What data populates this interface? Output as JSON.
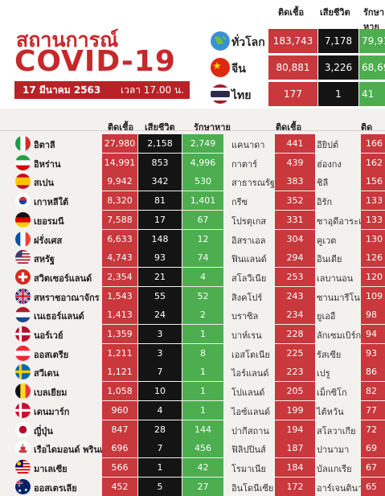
{
  "header": {
    "title_th": "สถานการณ์",
    "title_en": "COVID-19",
    "date": "17 มีนาคม 2563",
    "time": "เวลา 17.00 น."
  },
  "columns": {
    "cases": "ติดเชื้อ",
    "deaths": "เสียชีวิต",
    "recovered": "รักษาหาย"
  },
  "colors": {
    "cases": "#c8383c",
    "deaths": "#141414",
    "recovered": "#4cae4f",
    "title": "#c7282b"
  },
  "summary": [
    {
      "name": "ทั่วโลก",
      "icon": "globe-icon",
      "cases": "183,743",
      "deaths": "7,178",
      "recovered": "79,911"
    },
    {
      "name": "จีน",
      "icon": "china-flag-icon",
      "cases": "80,881",
      "deaths": "3,226",
      "recovered": "68,694"
    },
    {
      "name": "ไทย",
      "icon": "thailand-flag-icon",
      "cases": "177",
      "deaths": "1",
      "recovered": "41"
    }
  ],
  "chart_data": {
    "type": "table",
    "title": "สถานการณ์ COVID-19",
    "col1": [
      {
        "country": "อิตาลี",
        "cases": "27,980",
        "deaths": "2,158",
        "recovered": "2,749"
      },
      {
        "country": "อิหร่าน",
        "cases": "14,991",
        "deaths": "853",
        "recovered": "4,996"
      },
      {
        "country": "สเปน",
        "cases": "9,942",
        "deaths": "342",
        "recovered": "530"
      },
      {
        "country": "เกาหลีใต้",
        "cases": "8,320",
        "deaths": "81",
        "recovered": "1,401"
      },
      {
        "country": "เยอรมนี",
        "cases": "7,588",
        "deaths": "17",
        "recovered": "67"
      },
      {
        "country": "ฝรั่งเศส",
        "cases": "6,633",
        "deaths": "148",
        "recovered": "12"
      },
      {
        "country": "สหรัฐ",
        "cases": "4,743",
        "deaths": "93",
        "recovered": "74"
      },
      {
        "country": "สวิตเซอร์แลนด์",
        "cases": "2,354",
        "deaths": "21",
        "recovered": "4"
      },
      {
        "country": "สหราชอาณาจักร",
        "cases": "1,543",
        "deaths": "55",
        "recovered": "52"
      },
      {
        "country": "เนเธอร์แลนด์",
        "cases": "1,413",
        "deaths": "24",
        "recovered": "2"
      },
      {
        "country": "นอร์เวย์",
        "cases": "1,359",
        "deaths": "3",
        "recovered": "1"
      },
      {
        "country": "ออสเตรีย",
        "cases": "1,211",
        "deaths": "3",
        "recovered": "8"
      },
      {
        "country": "สวีเดน",
        "cases": "1,121",
        "deaths": "7",
        "recovered": "1"
      },
      {
        "country": "เบลเยียม",
        "cases": "1,058",
        "deaths": "10",
        "recovered": "1"
      },
      {
        "country": "เดนมาร์ก",
        "cases": "960",
        "deaths": "4",
        "recovered": "1"
      },
      {
        "country": "ญี่ปุ่น",
        "cases": "847",
        "deaths": "28",
        "recovered": "144"
      },
      {
        "country": "เรือไดมอนด์ พรินเซส",
        "cases": "696",
        "deaths": "7",
        "recovered": "456"
      },
      {
        "country": "มาเลเซีย",
        "cases": "566",
        "deaths": "1",
        "recovered": "42"
      },
      {
        "country": "ออสเตรเลีย",
        "cases": "452",
        "deaths": "5",
        "recovered": "27"
      }
    ],
    "col2": [
      {
        "country": "แคนาดา",
        "cases": "441"
      },
      {
        "country": "กาตาร์",
        "cases": "439"
      },
      {
        "country": "สาธารณรัฐเช็ก",
        "cases": "383"
      },
      {
        "country": "กรีซ",
        "cases": "352"
      },
      {
        "country": "โปรตุเกส",
        "cases": "331"
      },
      {
        "country": "อิสราเอล",
        "cases": "304"
      },
      {
        "country": "ฟินแลนด์",
        "cases": "294"
      },
      {
        "country": "สโลวีเนีย",
        "cases": "253"
      },
      {
        "country": "สิงคโปร์",
        "cases": "243"
      },
      {
        "country": "บราซิล",
        "cases": "234"
      },
      {
        "country": "บาห์เรน",
        "cases": "228"
      },
      {
        "country": "เอสโตเนีย",
        "cases": "225"
      },
      {
        "country": "ไอร์แลนด์",
        "cases": "223"
      },
      {
        "country": "โปแลนด์",
        "cases": "205"
      },
      {
        "country": "ไอซ์แลนด์",
        "cases": "199"
      },
      {
        "country": "ปากีสถาน",
        "cases": "194"
      },
      {
        "country": "ฟิลิปปินส์",
        "cases": "187"
      },
      {
        "country": "โรมาเนีย",
        "cases": "184"
      },
      {
        "country": "อินโดนีเซีย",
        "cases": "172"
      }
    ],
    "col3": [
      {
        "country": "อียิปต์",
        "cases": "166"
      },
      {
        "country": "ฮ่องกง",
        "cases": "162"
      },
      {
        "country": "ชิลี",
        "cases": "156"
      },
      {
        "country": "อิรัก",
        "cases": "133"
      },
      {
        "country": "ซาอุดีอาระเบีย",
        "cases": "133"
      },
      {
        "country": "คูเวต",
        "cases": "130"
      },
      {
        "country": "อินเดีย",
        "cases": "126"
      },
      {
        "country": "เลบานอน",
        "cases": "120"
      },
      {
        "country": "ซานมารีโน",
        "cases": "109"
      },
      {
        "country": "ยูเออี",
        "cases": "98"
      },
      {
        "country": "ลักเซมเบิร์ก",
        "cases": "94"
      },
      {
        "country": "รัสเซีย",
        "cases": "93"
      },
      {
        "country": "เปรู",
        "cases": "86"
      },
      {
        "country": "เม็กซิโก",
        "cases": "82"
      },
      {
        "country": "ไต้หวัน",
        "cases": "77"
      },
      {
        "country": "สโลวาเกีย",
        "cases": "72"
      },
      {
        "country": "ปานามา",
        "cases": "69"
      },
      {
        "country": "บัลแกเรีย",
        "cases": "67"
      },
      {
        "country": "อาร์เจนตินา",
        "cases": "65"
      }
    ]
  }
}
